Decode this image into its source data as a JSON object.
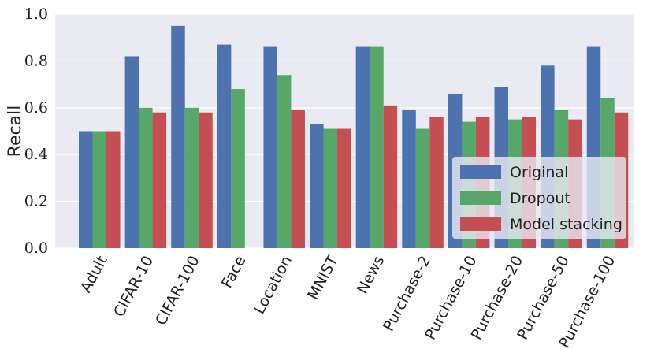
{
  "chart_data": {
    "type": "bar",
    "title": "",
    "xlabel": "",
    "ylabel": "Recall",
    "ylim": [
      0.0,
      1.0
    ],
    "yticks": [
      "0.0",
      "0.2",
      "0.4",
      "0.6",
      "0.8",
      "1.0"
    ],
    "grid": true,
    "legend_position": "bottom-right",
    "categories": [
      "Adult",
      "CIFAR-10",
      "CIFAR-100",
      "Face",
      "Location",
      "MNIST",
      "News",
      "Purchase-2",
      "Purchase-10",
      "Purchase-20",
      "Purchase-50",
      "Purchase-100"
    ],
    "series": [
      {
        "name": "Original",
        "color": "#4c72b0",
        "values": [
          0.5,
          0.82,
          0.95,
          0.87,
          0.86,
          0.53,
          0.86,
          0.59,
          0.66,
          0.69,
          0.78,
          0.86
        ]
      },
      {
        "name": "Dropout",
        "color": "#55a868",
        "values": [
          0.5,
          0.6,
          0.6,
          0.68,
          0.74,
          0.51,
          0.86,
          0.51,
          0.54,
          0.55,
          0.59,
          0.64
        ]
      },
      {
        "name": "Model stacking",
        "color": "#c44e52",
        "values": [
          0.5,
          0.58,
          0.58,
          null,
          0.59,
          0.51,
          0.61,
          0.56,
          0.56,
          0.56,
          0.55,
          0.58
        ]
      }
    ],
    "background_color": "#eaeaf2",
    "grid_color": "#ffffff"
  }
}
